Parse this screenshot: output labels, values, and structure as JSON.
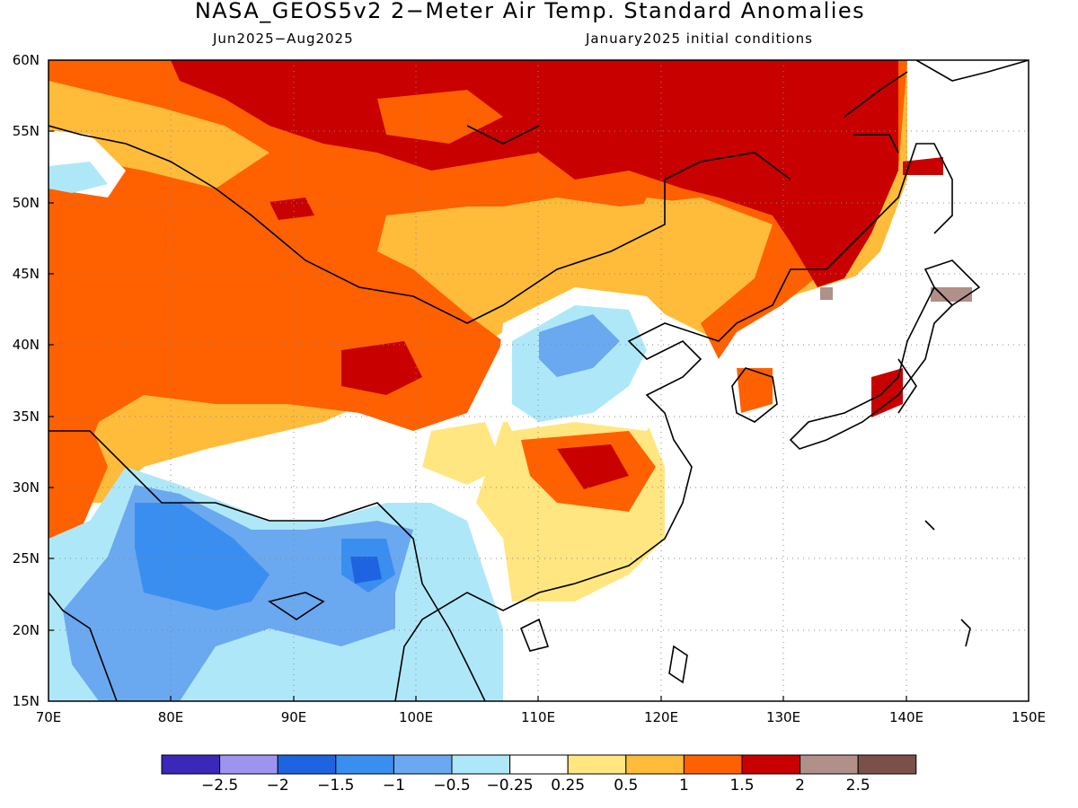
{
  "title": "NASA_GEOS5v2 2−Meter Air Temp. Standard Anomalies",
  "subtitle_left": "Jun2025−Aug2025",
  "subtitle_right": "January2025 initial conditions",
  "map": {
    "lon_range": [
      70,
      150
    ],
    "lat_range": [
      15,
      60
    ],
    "lat_ticks": [
      "60N",
      "55N",
      "50N",
      "45N",
      "40N",
      "35N",
      "30N",
      "25N",
      "20N",
      "15N"
    ],
    "lon_ticks": [
      "70E",
      "80E",
      "90E",
      "100E",
      "110E",
      "120E",
      "130E",
      "140E",
      "150E"
    ],
    "grid": "dotted"
  },
  "colorbar": {
    "colors": [
      "#3b27b8",
      "#9e94f0",
      "#1e64e0",
      "#3a8ef0",
      "#6aa8f0",
      "#aee8f8",
      "#ffffff",
      "#ffe680",
      "#ffbb3a",
      "#ff6000",
      "#c80000",
      "#b09088",
      "#7a5048"
    ],
    "labels": [
      "−2.5",
      "−2",
      "−1.5",
      "−1",
      "−0.5",
      "−0.25",
      "0.25",
      "0.5",
      "1",
      "1.5",
      "2",
      "2.5"
    ]
  }
}
